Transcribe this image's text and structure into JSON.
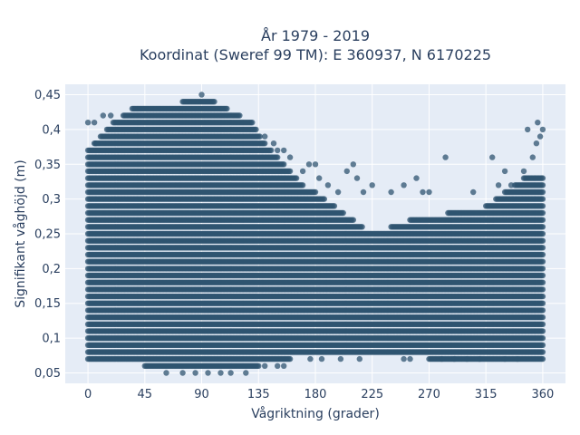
{
  "chart_data": {
    "type": "scatter",
    "title_line1": "År 1979 - 2019",
    "title_line2": "Koordinat (Sweref 99 TM): E 360937, N 6170225",
    "xlabel": "Vågriktning (grader)",
    "ylabel": "Signifikant våghöjd (m)",
    "xlim": [
      -18,
      378
    ],
    "ylim": [
      0.035,
      0.465
    ],
    "x_ticks": [
      0,
      45,
      90,
      135,
      180,
      225,
      270,
      315,
      360
    ],
    "x_tick_labels": [
      "0",
      "45",
      "90",
      "135",
      "180",
      "225",
      "270",
      "315",
      "360"
    ],
    "y_ticks": [
      0.05,
      0.1,
      0.15,
      0.2,
      0.25,
      0.3,
      0.35,
      0.4,
      0.45
    ],
    "y_tick_labels": [
      "0,05",
      "0,1",
      "0,15",
      "0,2",
      "0,25",
      "0,3",
      "0,35",
      "0,4",
      "0,45"
    ],
    "grid": true,
    "background_color": "#e5ecf6",
    "marker_color": "#2f5470",
    "dense_band": {
      "x_step": 1,
      "y_step": 0.01,
      "x_range": [
        0,
        360
      ],
      "lower_envelope": [
        [
          0,
          0.07
        ],
        [
          45,
          0.06
        ],
        [
          90,
          0.06
        ],
        [
          135,
          0.06
        ],
        [
          160,
          0.07
        ],
        [
          180,
          0.08
        ],
        [
          225,
          0.08
        ],
        [
          270,
          0.07
        ],
        [
          315,
          0.07
        ],
        [
          360,
          0.07
        ]
      ],
      "upper_envelope": [
        [
          0,
          0.37
        ],
        [
          10,
          0.39
        ],
        [
          20,
          0.41
        ],
        [
          35,
          0.43
        ],
        [
          45,
          0.43
        ],
        [
          60,
          0.43
        ],
        [
          75,
          0.44
        ],
        [
          90,
          0.45
        ],
        [
          110,
          0.43
        ],
        [
          130,
          0.41
        ],
        [
          140,
          0.38
        ],
        [
          150,
          0.36
        ],
        [
          160,
          0.34
        ],
        [
          170,
          0.32
        ],
        [
          180,
          0.31
        ],
        [
          195,
          0.29
        ],
        [
          210,
          0.27
        ],
        [
          225,
          0.25
        ],
        [
          240,
          0.26
        ],
        [
          255,
          0.27
        ],
        [
          270,
          0.27
        ],
        [
          285,
          0.28
        ],
        [
          300,
          0.28
        ],
        [
          315,
          0.29
        ],
        [
          330,
          0.31
        ],
        [
          345,
          0.33
        ],
        [
          360,
          0.33
        ]
      ]
    },
    "outliers": [
      [
        0,
        0.41
      ],
      [
        5,
        0.41
      ],
      [
        12,
        0.42
      ],
      [
        18,
        0.42
      ],
      [
        6,
        0.38
      ],
      [
        62,
        0.05
      ],
      [
        75,
        0.05
      ],
      [
        85,
        0.05
      ],
      [
        95,
        0.05
      ],
      [
        105,
        0.05
      ],
      [
        113,
        0.05
      ],
      [
        125,
        0.05
      ],
      [
        140,
        0.06
      ],
      [
        150,
        0.06
      ],
      [
        155,
        0.06
      ],
      [
        140,
        0.39
      ],
      [
        147,
        0.38
      ],
      [
        150,
        0.37
      ],
      [
        155,
        0.37
      ],
      [
        160,
        0.36
      ],
      [
        170,
        0.34
      ],
      [
        175,
        0.35
      ],
      [
        180,
        0.35
      ],
      [
        183,
        0.33
      ],
      [
        190,
        0.32
      ],
      [
        198,
        0.31
      ],
      [
        205,
        0.34
      ],
      [
        210,
        0.35
      ],
      [
        213,
        0.33
      ],
      [
        218,
        0.31
      ],
      [
        225,
        0.32
      ],
      [
        240,
        0.31
      ],
      [
        250,
        0.32
      ],
      [
        260,
        0.33
      ],
      [
        265,
        0.31
      ],
      [
        270,
        0.31
      ],
      [
        283,
        0.36
      ],
      [
        305,
        0.31
      ],
      [
        320,
        0.36
      ],
      [
        325,
        0.32
      ],
      [
        330,
        0.34
      ],
      [
        335,
        0.32
      ],
      [
        345,
        0.34
      ],
      [
        348,
        0.4
      ],
      [
        352,
        0.36
      ],
      [
        355,
        0.38
      ],
      [
        358,
        0.39
      ],
      [
        360,
        0.4
      ],
      [
        356,
        0.41
      ],
      [
        176,
        0.07
      ],
      [
        185,
        0.07
      ],
      [
        200,
        0.07
      ],
      [
        215,
        0.07
      ],
      [
        250,
        0.07
      ],
      [
        255,
        0.07
      ],
      [
        280,
        0.07
      ],
      [
        290,
        0.07
      ],
      [
        300,
        0.07
      ],
      [
        310,
        0.07
      ],
      [
        330,
        0.07
      ],
      [
        340,
        0.07
      ]
    ]
  }
}
